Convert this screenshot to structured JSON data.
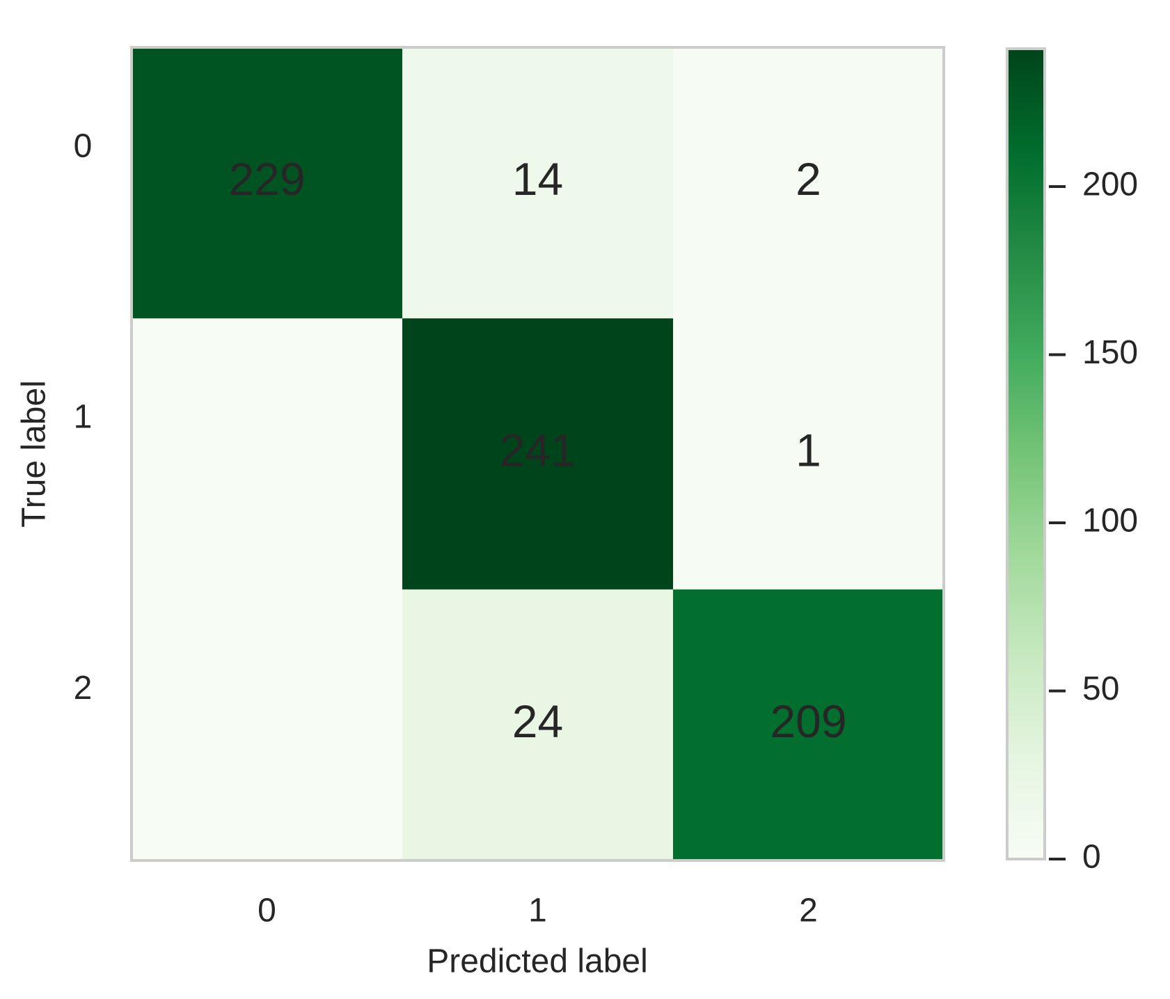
{
  "chart_data": {
    "type": "heatmap",
    "x_label": "Predicted label",
    "y_label": "True label",
    "x_categories": [
      "0",
      "1",
      "2"
    ],
    "y_categories": [
      "0",
      "1",
      "2"
    ],
    "values": [
      [
        229,
        14,
        2
      ],
      [
        0,
        241,
        1
      ],
      [
        0,
        24,
        209
      ]
    ],
    "value_labels": [
      [
        "229",
        "14",
        "2"
      ],
      [
        null,
        "241",
        "1"
      ],
      [
        null,
        "24",
        "209"
      ]
    ],
    "colormap": [
      "#f7fcf5",
      "#e5f5e0",
      "#c7e9c0",
      "#a1d99b",
      "#74c476",
      "#41ab5d",
      "#238b45",
      "#006d2c",
      "#00441b"
    ],
    "colorbar": {
      "ylim": [
        0,
        241
      ],
      "yticks": [
        0,
        50,
        100,
        150,
        200
      ]
    }
  }
}
